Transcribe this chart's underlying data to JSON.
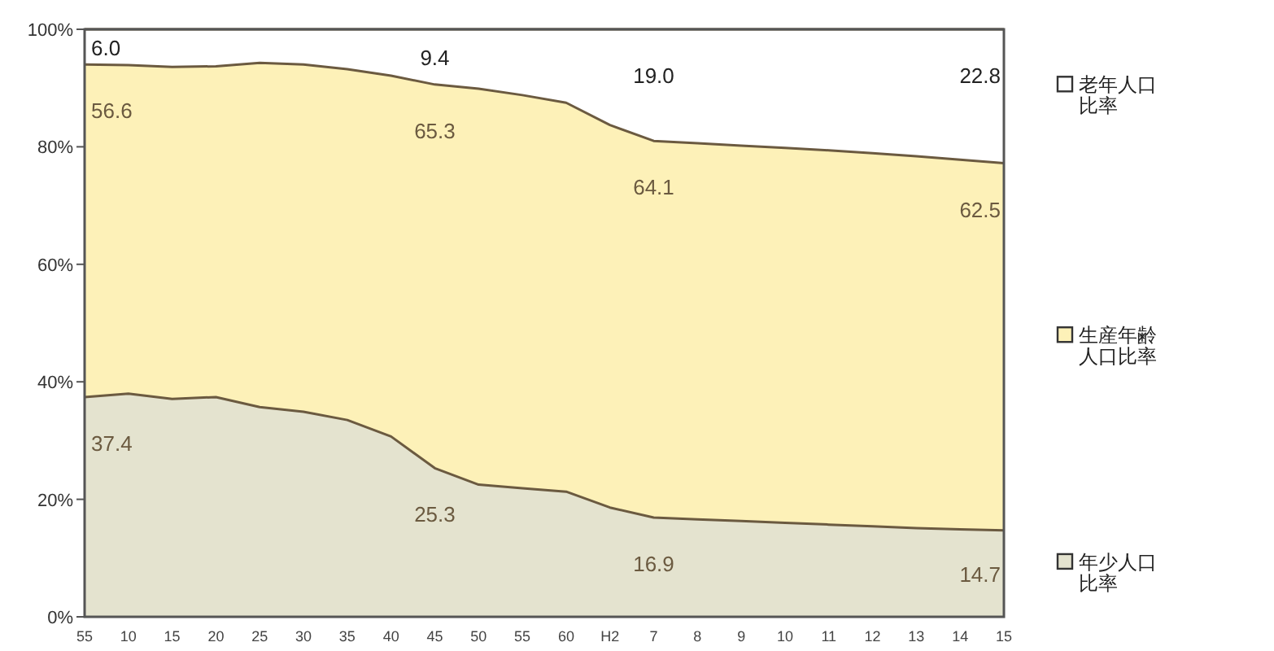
{
  "chart_data": {
    "type": "area",
    "stacked": true,
    "categories": [
      "55",
      "10",
      "15",
      "20",
      "25",
      "30",
      "35",
      "40",
      "45",
      "50",
      "55",
      "60",
      "H2",
      "7",
      "8",
      "9",
      "10",
      "11",
      "12",
      "13",
      "14",
      "15"
    ],
    "series": [
      {
        "name": "年少人口比率",
        "color": "#e4e3cf",
        "values": [
          37.4,
          38.0,
          37.1,
          37.4,
          35.7,
          34.9,
          33.5,
          30.7,
          25.3,
          22.5,
          21.9,
          21.3,
          18.6,
          16.9,
          16.6,
          16.3,
          16.0,
          15.7,
          15.4,
          15.1,
          14.9,
          14.7
        ],
        "value_labels": [
          "37.4",
          null,
          null,
          null,
          null,
          null,
          null,
          null,
          "25.3",
          null,
          null,
          null,
          null,
          "16.9",
          null,
          null,
          null,
          null,
          null,
          null,
          null,
          "14.7"
        ]
      },
      {
        "name": "生産年齢人口比率",
        "color": "#fdf1b8",
        "values": [
          56.6,
          55.9,
          56.5,
          56.3,
          58.6,
          59.1,
          59.7,
          61.4,
          65.3,
          67.4,
          66.9,
          66.2,
          65.1,
          64.1,
          64.0,
          63.9,
          63.8,
          63.7,
          63.5,
          63.3,
          62.9,
          62.5
        ],
        "value_labels": [
          "56.6",
          null,
          null,
          null,
          null,
          null,
          null,
          null,
          "65.3",
          null,
          null,
          null,
          null,
          "64.1",
          null,
          null,
          null,
          null,
          null,
          null,
          null,
          "62.5"
        ]
      },
      {
        "name": "老年人口比率",
        "color": "#ffffff",
        "values": [
          6.0,
          6.1,
          6.4,
          6.3,
          5.7,
          6.0,
          6.8,
          7.9,
          9.4,
          10.1,
          11.2,
          12.5,
          16.3,
          19.0,
          19.4,
          19.8,
          20.2,
          20.6,
          21.1,
          21.6,
          22.2,
          22.8
        ],
        "value_labels": [
          "6.0",
          null,
          null,
          null,
          null,
          null,
          null,
          null,
          "9.4",
          null,
          null,
          null,
          null,
          "19.0",
          null,
          null,
          null,
          null,
          null,
          null,
          null,
          "22.8"
        ]
      }
    ],
    "ylim": [
      0,
      100
    ],
    "yticks": [
      {
        "value": 0,
        "label": "0%"
      },
      {
        "value": 20,
        "label": "20%"
      },
      {
        "value": 40,
        "label": "40%"
      },
      {
        "value": 60,
        "label": "60%"
      },
      {
        "value": 80,
        "label": "80%"
      },
      {
        "value": 100,
        "label": "100%"
      }
    ],
    "legend": "right"
  }
}
